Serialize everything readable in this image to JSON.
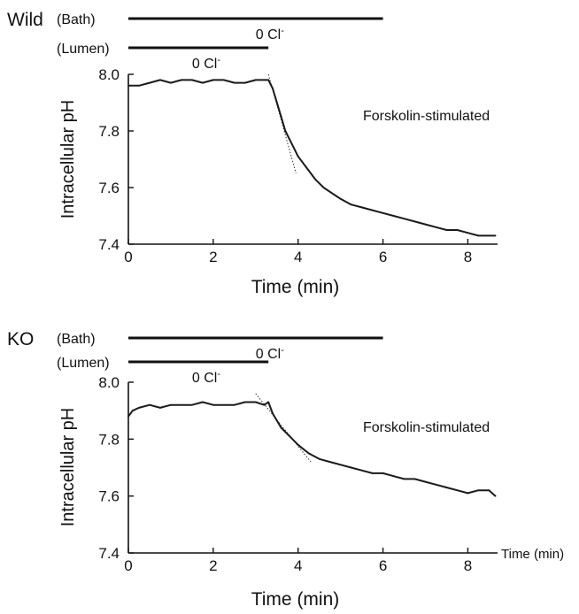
{
  "chart_data": [
    {
      "type": "line",
      "panel_label": "Wild",
      "annotation": "Forskolin-stimulated",
      "xlabel": "Time (min)",
      "ylabel": "Intracellular pH",
      "xlim": [
        0,
        8.7
      ],
      "ylim": [
        7.4,
        8.0
      ],
      "xticks": [
        "0",
        "2",
        "4",
        "6",
        "8"
      ],
      "yticks": [
        "7.4",
        "7.6",
        "7.8",
        "8.0"
      ],
      "solution_bars": [
        {
          "label": "(Bath)",
          "x_start": 0,
          "x_end": 6.0,
          "text": "0 Cl-",
          "text_x": 3.0
        },
        {
          "label": "(Lumen)",
          "x_start": 0,
          "x_end": 3.3,
          "text": "0 Cl-",
          "text_x": 1.5
        }
      ],
      "slope_line": {
        "x": [
          3.3,
          3.95
        ],
        "y": [
          8.0,
          7.65
        ]
      },
      "series": [
        {
          "x": [
            0,
            0.25,
            0.5,
            0.75,
            1.0,
            1.25,
            1.5,
            1.75,
            2.0,
            2.25,
            2.5,
            2.75,
            3.0,
            3.2,
            3.3,
            3.4,
            3.5,
            3.6,
            3.7,
            3.8,
            3.9,
            4.0,
            4.2,
            4.4,
            4.6,
            4.8,
            5.0,
            5.25,
            5.5,
            5.75,
            6.0,
            6.25,
            6.5,
            6.75,
            7.0,
            7.25,
            7.5,
            7.75,
            8.0,
            8.25,
            8.5,
            8.65
          ],
          "y": [
            7.96,
            7.96,
            7.97,
            7.98,
            7.97,
            7.98,
            7.98,
            7.97,
            7.98,
            7.98,
            7.97,
            7.97,
            7.98,
            7.98,
            7.98,
            7.95,
            7.9,
            7.85,
            7.8,
            7.77,
            7.74,
            7.71,
            7.67,
            7.63,
            7.6,
            7.58,
            7.56,
            7.54,
            7.53,
            7.52,
            7.51,
            7.5,
            7.49,
            7.48,
            7.47,
            7.46,
            7.45,
            7.45,
            7.44,
            7.43,
            7.43,
            7.43
          ]
        }
      ]
    },
    {
      "type": "line",
      "panel_label": "KO",
      "annotation": "Forskolin-stimulated",
      "xlabel": "Time (min)",
      "ylabel": "Intracellular pH",
      "x_unit_label": "Time (min)",
      "xlim": [
        0,
        8.7
      ],
      "ylim": [
        7.4,
        8.0
      ],
      "xticks": [
        "0",
        "2",
        "4",
        "6",
        "8"
      ],
      "yticks": [
        "7.4",
        "7.6",
        "7.8",
        "8.0"
      ],
      "solution_bars": [
        {
          "label": "(Bath)",
          "x_start": 0,
          "x_end": 6.0,
          "text": "0 Cl-",
          "text_x": 3.0
        },
        {
          "label": "(Lumen)",
          "x_start": 0,
          "x_end": 3.3,
          "text": "0 Cl-",
          "text_x": 1.5
        }
      ],
      "slope_line": {
        "x": [
          3.0,
          4.3
        ],
        "y": [
          7.96,
          7.72
        ]
      },
      "series": [
        {
          "x": [
            0,
            0.1,
            0.25,
            0.5,
            0.75,
            1.0,
            1.25,
            1.5,
            1.75,
            2.0,
            2.25,
            2.5,
            2.75,
            3.0,
            3.2,
            3.3,
            3.4,
            3.6,
            3.8,
            4.0,
            4.25,
            4.5,
            4.75,
            5.0,
            5.25,
            5.5,
            5.75,
            6.0,
            6.25,
            6.5,
            6.75,
            7.0,
            7.25,
            7.5,
            7.75,
            8.0,
            8.25,
            8.5,
            8.65
          ],
          "y": [
            7.88,
            7.9,
            7.91,
            7.92,
            7.91,
            7.92,
            7.92,
            7.92,
            7.93,
            7.92,
            7.92,
            7.92,
            7.93,
            7.93,
            7.92,
            7.93,
            7.89,
            7.84,
            7.81,
            7.78,
            7.75,
            7.73,
            7.72,
            7.71,
            7.7,
            7.69,
            7.68,
            7.68,
            7.67,
            7.66,
            7.66,
            7.65,
            7.64,
            7.63,
            7.62,
            7.61,
            7.62,
            7.62,
            7.6
          ]
        }
      ]
    }
  ]
}
